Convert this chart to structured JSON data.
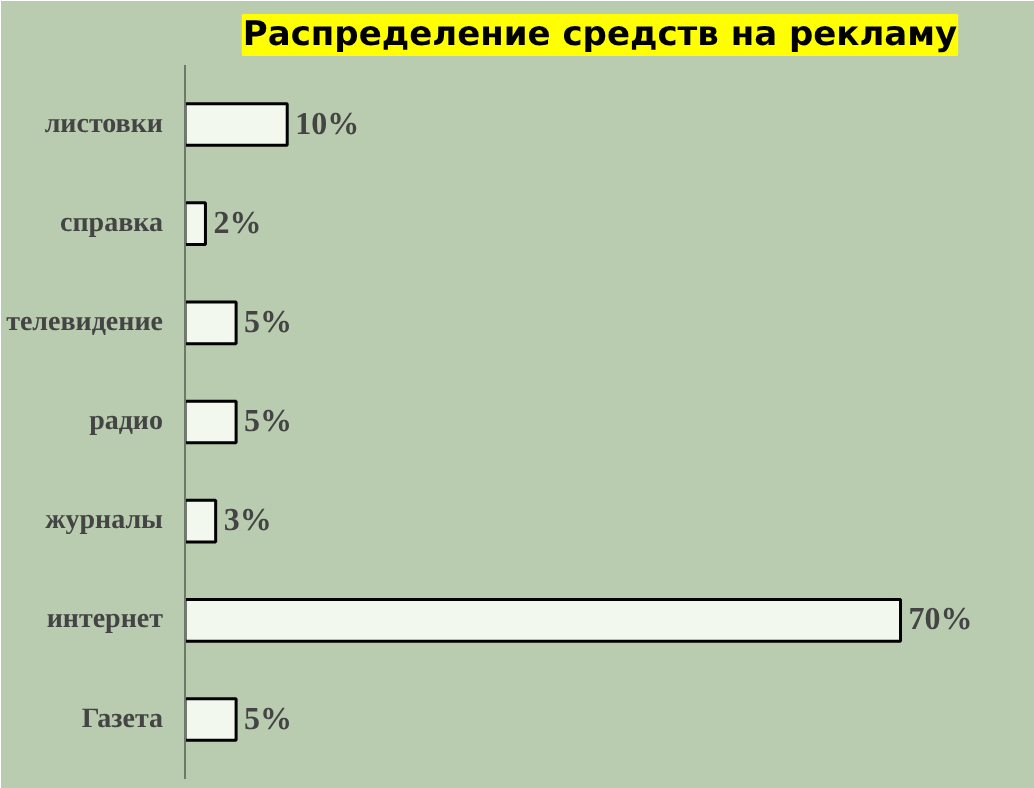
{
  "chart_data": {
    "type": "bar",
    "orientation": "horizontal",
    "title": "Распределение средств на рекламу",
    "categories": [
      "листовки",
      "справка",
      "телевидение",
      "радио",
      "журналы",
      "интернет",
      "Газета"
    ],
    "values": [
      10,
      2,
      5,
      5,
      3,
      70,
      5
    ],
    "value_labels": [
      "10%",
      "2%",
      "5%",
      "5%",
      "3%",
      "70%",
      "5%"
    ],
    "color": "#f2f8ee"
  }
}
